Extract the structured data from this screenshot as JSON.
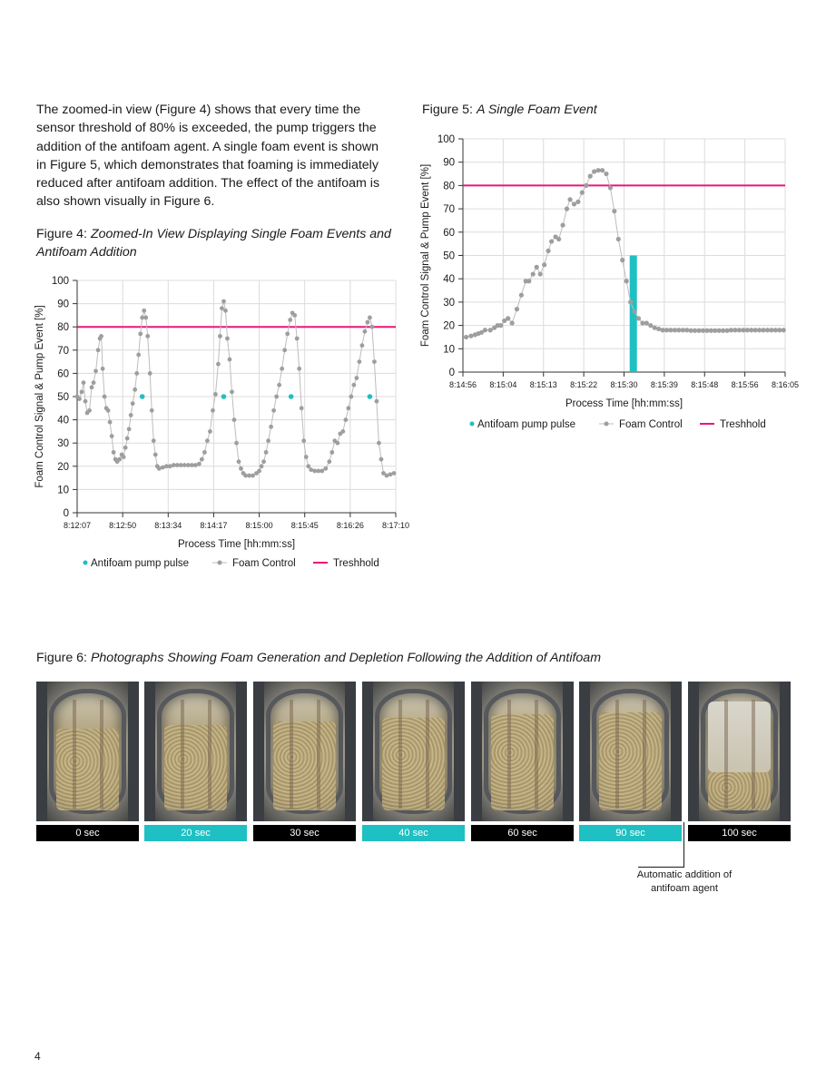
{
  "intro_text": "The zoomed-in view (Figure 4) shows that every time the sensor threshold of 80% is exceeded, the pump triggers the addition of the antifoam agent. A single foam event is shown in Figure 5, which demonstrates that foaming is immediately reduced after antifoam addition. The effect of the antifoam is also shown visually in Figure 6.",
  "figure4": {
    "label": "Figure 4:",
    "title": "Zoomed-In View Displaying Single Foam Events and Antifoam Addition"
  },
  "figure5": {
    "label": "Figure 5:",
    "title": "A Single Foam Event"
  },
  "figure6": {
    "label": "Figure 6:",
    "title": "Photographs Showing Foam Generation and Depletion Following the Addition of Antifoam"
  },
  "colors": {
    "teal": "#1ec0c3",
    "magenta": "#e8177d",
    "gray": "#9e9e9e",
    "grid": "#dcdcdc"
  },
  "chart_data": [
    {
      "type": "scatter",
      "xlabel": "Process Time [hh:mm:ss]",
      "ylabel": "Foam Control Signal & Pump Event [%]",
      "xticks": [
        "8:12:07",
        "8:12:50",
        "8:13:34",
        "8:14:17",
        "8:15:00",
        "8:15:45",
        "8:16:26",
        "8:17:10"
      ],
      "yticks": [
        "0",
        "10",
        "20",
        "30",
        "40",
        "50",
        "60",
        "70",
        "80",
        "90",
        "100"
      ],
      "ylim": [
        0,
        100
      ],
      "x_count": 7,
      "legend": [
        "Antifoam pump pulse",
        "Foam Control",
        "Treshhold"
      ],
      "legend_position": "bottom",
      "grid": true,
      "threshold": 80,
      "pump_pulses": [
        {
          "x": 1.43,
          "y": 50
        },
        {
          "x": 3.22,
          "y": 50
        },
        {
          "x": 4.7,
          "y": 50
        },
        {
          "x": 6.43,
          "y": 50
        }
      ],
      "foam_control": [
        {
          "x": 0.0,
          "y": 50
        },
        {
          "x": 0.05,
          "y": 49
        },
        {
          "x": 0.1,
          "y": 52
        },
        {
          "x": 0.14,
          "y": 56
        },
        {
          "x": 0.18,
          "y": 48
        },
        {
          "x": 0.22,
          "y": 43
        },
        {
          "x": 0.27,
          "y": 44
        },
        {
          "x": 0.32,
          "y": 54
        },
        {
          "x": 0.36,
          "y": 56
        },
        {
          "x": 0.41,
          "y": 61
        },
        {
          "x": 0.46,
          "y": 70
        },
        {
          "x": 0.5,
          "y": 75
        },
        {
          "x": 0.53,
          "y": 76
        },
        {
          "x": 0.56,
          "y": 62
        },
        {
          "x": 0.6,
          "y": 50
        },
        {
          "x": 0.64,
          "y": 45
        },
        {
          "x": 0.68,
          "y": 44
        },
        {
          "x": 0.72,
          "y": 39
        },
        {
          "x": 0.76,
          "y": 33
        },
        {
          "x": 0.8,
          "y": 26
        },
        {
          "x": 0.84,
          "y": 23
        },
        {
          "x": 0.88,
          "y": 22
        },
        {
          "x": 0.93,
          "y": 23
        },
        {
          "x": 0.98,
          "y": 25
        },
        {
          "x": 1.02,
          "y": 24
        },
        {
          "x": 1.06,
          "y": 28
        },
        {
          "x": 1.1,
          "y": 32
        },
        {
          "x": 1.14,
          "y": 36
        },
        {
          "x": 1.18,
          "y": 42
        },
        {
          "x": 1.22,
          "y": 47
        },
        {
          "x": 1.27,
          "y": 53
        },
        {
          "x": 1.31,
          "y": 60
        },
        {
          "x": 1.35,
          "y": 68
        },
        {
          "x": 1.39,
          "y": 77
        },
        {
          "x": 1.43,
          "y": 84
        },
        {
          "x": 1.47,
          "y": 87
        },
        {
          "x": 1.51,
          "y": 84
        },
        {
          "x": 1.55,
          "y": 76
        },
        {
          "x": 1.6,
          "y": 60
        },
        {
          "x": 1.64,
          "y": 44
        },
        {
          "x": 1.68,
          "y": 31
        },
        {
          "x": 1.72,
          "y": 25
        },
        {
          "x": 1.76,
          "y": 20
        },
        {
          "x": 1.8,
          "y": 19
        },
        {
          "x": 1.88,
          "y": 19.5
        },
        {
          "x": 1.96,
          "y": 20
        },
        {
          "x": 2.04,
          "y": 20
        },
        {
          "x": 2.12,
          "y": 20.5
        },
        {
          "x": 2.2,
          "y": 20.5
        },
        {
          "x": 2.28,
          "y": 20.5
        },
        {
          "x": 2.36,
          "y": 20.5
        },
        {
          "x": 2.44,
          "y": 20.5
        },
        {
          "x": 2.52,
          "y": 20.5
        },
        {
          "x": 2.6,
          "y": 20.5
        },
        {
          "x": 2.68,
          "y": 21
        },
        {
          "x": 2.74,
          "y": 23
        },
        {
          "x": 2.8,
          "y": 26
        },
        {
          "x": 2.86,
          "y": 31
        },
        {
          "x": 2.92,
          "y": 35
        },
        {
          "x": 2.98,
          "y": 44
        },
        {
          "x": 3.04,
          "y": 51
        },
        {
          "x": 3.1,
          "y": 64
        },
        {
          "x": 3.14,
          "y": 76
        },
        {
          "x": 3.18,
          "y": 88
        },
        {
          "x": 3.22,
          "y": 91
        },
        {
          "x": 3.26,
          "y": 87
        },
        {
          "x": 3.3,
          "y": 75
        },
        {
          "x": 3.35,
          "y": 66
        },
        {
          "x": 3.4,
          "y": 52
        },
        {
          "x": 3.45,
          "y": 40
        },
        {
          "x": 3.5,
          "y": 30
        },
        {
          "x": 3.55,
          "y": 22
        },
        {
          "x": 3.6,
          "y": 19
        },
        {
          "x": 3.65,
          "y": 17
        },
        {
          "x": 3.7,
          "y": 16
        },
        {
          "x": 3.78,
          "y": 16
        },
        {
          "x": 3.86,
          "y": 16
        },
        {
          "x": 3.94,
          "y": 17
        },
        {
          "x": 4.0,
          "y": 18
        },
        {
          "x": 4.05,
          "y": 20
        },
        {
          "x": 4.1,
          "y": 22
        },
        {
          "x": 4.15,
          "y": 26
        },
        {
          "x": 4.2,
          "y": 31
        },
        {
          "x": 4.26,
          "y": 37
        },
        {
          "x": 4.32,
          "y": 44
        },
        {
          "x": 4.38,
          "y": 50
        },
        {
          "x": 4.44,
          "y": 55
        },
        {
          "x": 4.5,
          "y": 62
        },
        {
          "x": 4.56,
          "y": 70
        },
        {
          "x": 4.62,
          "y": 77
        },
        {
          "x": 4.68,
          "y": 83
        },
        {
          "x": 4.73,
          "y": 86
        },
        {
          "x": 4.78,
          "y": 85
        },
        {
          "x": 4.83,
          "y": 75
        },
        {
          "x": 4.88,
          "y": 62
        },
        {
          "x": 4.93,
          "y": 45
        },
        {
          "x": 4.98,
          "y": 31
        },
        {
          "x": 5.03,
          "y": 24
        },
        {
          "x": 5.08,
          "y": 20
        },
        {
          "x": 5.14,
          "y": 18.5
        },
        {
          "x": 5.22,
          "y": 18
        },
        {
          "x": 5.3,
          "y": 18
        },
        {
          "x": 5.38,
          "y": 18
        },
        {
          "x": 5.46,
          "y": 19
        },
        {
          "x": 5.54,
          "y": 22
        },
        {
          "x": 5.6,
          "y": 26
        },
        {
          "x": 5.66,
          "y": 31
        },
        {
          "x": 5.72,
          "y": 30
        },
        {
          "x": 5.78,
          "y": 34
        },
        {
          "x": 5.84,
          "y": 35
        },
        {
          "x": 5.9,
          "y": 40
        },
        {
          "x": 5.96,
          "y": 45
        },
        {
          "x": 6.02,
          "y": 50
        },
        {
          "x": 6.08,
          "y": 55
        },
        {
          "x": 6.14,
          "y": 58
        },
        {
          "x": 6.2,
          "y": 65
        },
        {
          "x": 6.26,
          "y": 72
        },
        {
          "x": 6.32,
          "y": 78
        },
        {
          "x": 6.38,
          "y": 82
        },
        {
          "x": 6.43,
          "y": 84
        },
        {
          "x": 6.48,
          "y": 80
        },
        {
          "x": 6.53,
          "y": 65
        },
        {
          "x": 6.58,
          "y": 48
        },
        {
          "x": 6.63,
          "y": 30
        },
        {
          "x": 6.68,
          "y": 23
        },
        {
          "x": 6.73,
          "y": 17
        },
        {
          "x": 6.8,
          "y": 16
        },
        {
          "x": 6.88,
          "y": 16.5
        },
        {
          "x": 6.96,
          "y": 17
        }
      ]
    },
    {
      "type": "bar",
      "xlabel": "Process Time [hh:mm:ss]",
      "ylabel": "Foam Control Signal & Pump Event [%]",
      "xticks": [
        "8:14:56",
        "8:15:04",
        "8:15:13",
        "8:15:22",
        "8:15:30",
        "8:15:39",
        "8:15:48",
        "8:15:56",
        "8:16:05"
      ],
      "yticks": [
        "0",
        "10",
        "20",
        "30",
        "40",
        "50",
        "60",
        "70",
        "80",
        "90",
        "100"
      ],
      "ylim": [
        0,
        100
      ],
      "x_count": 8,
      "legend": [
        "Antifoam pump pulse",
        "Foam Control",
        "Treshhold"
      ],
      "legend_position": "bottom",
      "grid": true,
      "threshold": 80,
      "pump_bar": {
        "x_start": 4.14,
        "x_end": 4.32,
        "value": 50
      },
      "foam_control": [
        {
          "x": 0.08,
          "y": 15
        },
        {
          "x": 0.2,
          "y": 15.5
        },
        {
          "x": 0.3,
          "y": 16
        },
        {
          "x": 0.38,
          "y": 16.5
        },
        {
          "x": 0.46,
          "y": 17
        },
        {
          "x": 0.55,
          "y": 18
        },
        {
          "x": 0.68,
          "y": 18
        },
        {
          "x": 0.78,
          "y": 19
        },
        {
          "x": 0.86,
          "y": 20
        },
        {
          "x": 0.94,
          "y": 20
        },
        {
          "x": 1.03,
          "y": 22
        },
        {
          "x": 1.12,
          "y": 23
        },
        {
          "x": 1.22,
          "y": 21
        },
        {
          "x": 1.34,
          "y": 27
        },
        {
          "x": 1.45,
          "y": 33
        },
        {
          "x": 1.56,
          "y": 39
        },
        {
          "x": 1.64,
          "y": 39
        },
        {
          "x": 1.74,
          "y": 42
        },
        {
          "x": 1.83,
          "y": 45
        },
        {
          "x": 1.92,
          "y": 42
        },
        {
          "x": 2.02,
          "y": 46
        },
        {
          "x": 2.12,
          "y": 52
        },
        {
          "x": 2.2,
          "y": 56
        },
        {
          "x": 2.3,
          "y": 58
        },
        {
          "x": 2.38,
          "y": 57
        },
        {
          "x": 2.48,
          "y": 63
        },
        {
          "x": 2.58,
          "y": 70
        },
        {
          "x": 2.66,
          "y": 74
        },
        {
          "x": 2.76,
          "y": 72
        },
        {
          "x": 2.86,
          "y": 73
        },
        {
          "x": 2.96,
          "y": 77
        },
        {
          "x": 3.06,
          "y": 80
        },
        {
          "x": 3.16,
          "y": 84
        },
        {
          "x": 3.26,
          "y": 86
        },
        {
          "x": 3.36,
          "y": 86.5
        },
        {
          "x": 3.46,
          "y": 86.5
        },
        {
          "x": 3.56,
          "y": 85
        },
        {
          "x": 3.66,
          "y": 79
        },
        {
          "x": 3.76,
          "y": 69
        },
        {
          "x": 3.86,
          "y": 57
        },
        {
          "x": 3.96,
          "y": 48
        },
        {
          "x": 4.06,
          "y": 39
        },
        {
          "x": 4.16,
          "y": 30
        },
        {
          "x": 4.26,
          "y": 26
        },
        {
          "x": 4.36,
          "y": 23
        },
        {
          "x": 4.46,
          "y": 21
        },
        {
          "x": 4.56,
          "y": 21
        },
        {
          "x": 4.66,
          "y": 20
        },
        {
          "x": 4.76,
          "y": 19
        },
        {
          "x": 4.86,
          "y": 18.5
        },
        {
          "x": 4.96,
          "y": 18
        },
        {
          "x": 5.06,
          "y": 18
        },
        {
          "x": 5.16,
          "y": 18
        },
        {
          "x": 5.26,
          "y": 18
        },
        {
          "x": 5.36,
          "y": 18
        },
        {
          "x": 5.46,
          "y": 18
        },
        {
          "x": 5.56,
          "y": 18
        },
        {
          "x": 5.66,
          "y": 17.8
        },
        {
          "x": 5.76,
          "y": 17.8
        },
        {
          "x": 5.86,
          "y": 17.8
        },
        {
          "x": 5.96,
          "y": 17.8
        },
        {
          "x": 6.06,
          "y": 17.8
        },
        {
          "x": 6.16,
          "y": 17.8
        },
        {
          "x": 6.26,
          "y": 17.8
        },
        {
          "x": 6.36,
          "y": 17.8
        },
        {
          "x": 6.46,
          "y": 17.8
        },
        {
          "x": 6.56,
          "y": 17.8
        },
        {
          "x": 6.66,
          "y": 18
        },
        {
          "x": 6.76,
          "y": 18
        },
        {
          "x": 6.86,
          "y": 18
        },
        {
          "x": 6.96,
          "y": 18
        },
        {
          "x": 7.06,
          "y": 18
        },
        {
          "x": 7.16,
          "y": 18
        },
        {
          "x": 7.26,
          "y": 18
        },
        {
          "x": 7.36,
          "y": 18
        },
        {
          "x": 7.46,
          "y": 18
        },
        {
          "x": 7.56,
          "y": 18
        },
        {
          "x": 7.66,
          "y": 18
        },
        {
          "x": 7.76,
          "y": 18
        },
        {
          "x": 7.86,
          "y": 18
        },
        {
          "x": 7.96,
          "y": 18
        }
      ]
    }
  ],
  "photos": [
    {
      "label": "0 sec",
      "highlight": false,
      "foam_level": 0.75
    },
    {
      "label": "20 sec",
      "highlight": true,
      "foam_level": 0.78
    },
    {
      "label": "30 sec",
      "highlight": false,
      "foam_level": 0.82
    },
    {
      "label": "40 sec",
      "highlight": true,
      "foam_level": 0.85
    },
    {
      "label": "60 sec",
      "highlight": false,
      "foam_level": 0.88
    },
    {
      "label": "90 sec",
      "highlight": true,
      "foam_level": 0.9
    },
    {
      "label": "100 sec",
      "highlight": false,
      "foam_level": 0.35
    }
  ],
  "callout": "Automatic addition of antifoam agent",
  "page_number": "4"
}
